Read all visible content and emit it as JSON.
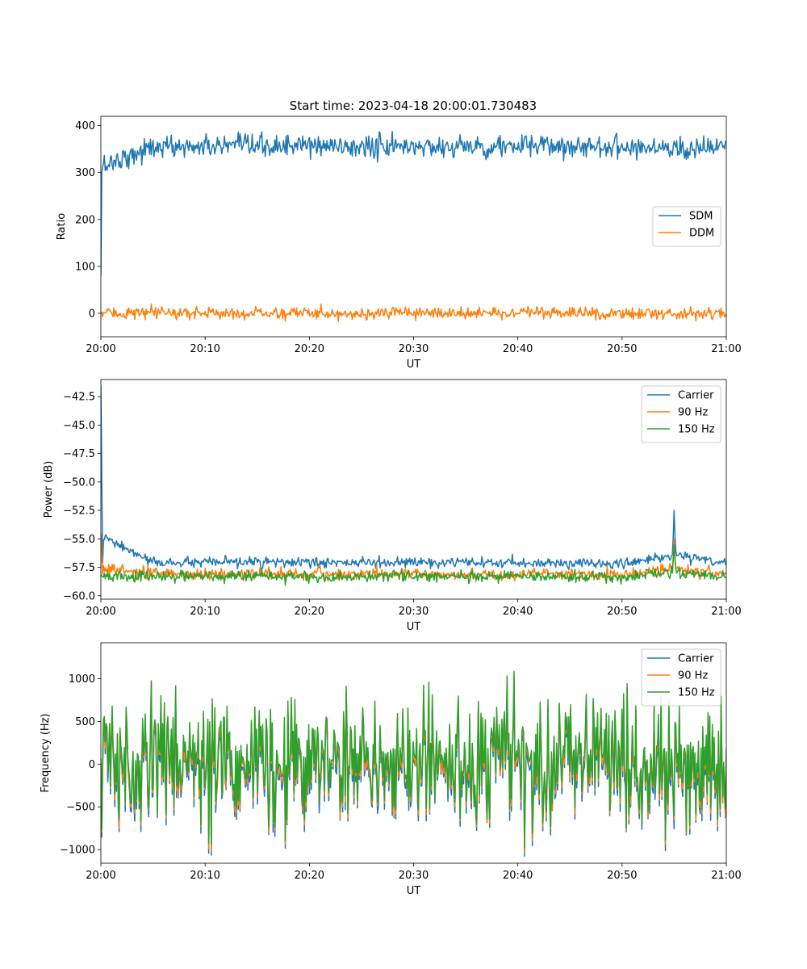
{
  "figure": {
    "title": "Start time: 2023-04-18 20:00:01.730483"
  },
  "colors": {
    "blue": "#1f77b4",
    "orange": "#ff7f0e",
    "green": "#2ca02c"
  },
  "chart_data": [
    {
      "type": "line",
      "title": "Start time: 2023-04-18 20:00:01.730483",
      "xlabel": "UT",
      "ylabel": "Ratio",
      "xlim": [
        "20:00",
        "21:00"
      ],
      "xticks": [
        "20:00",
        "20:10",
        "20:20",
        "20:30",
        "20:40",
        "20:50",
        "21:00"
      ],
      "ylim": [
        -50,
        420
      ],
      "yticks": [
        0,
        100,
        200,
        300,
        400
      ],
      "legend": "center-right",
      "x": [
        "20:00",
        "20:05",
        "20:10",
        "20:15",
        "20:20",
        "20:25",
        "20:30",
        "20:35",
        "20:40",
        "20:45",
        "20:50",
        "20:55",
        "21:00"
      ],
      "series": [
        {
          "name": "SDM",
          "color": "blue",
          "start": 80,
          "mean": 355,
          "noise": 17,
          "values": [
            80,
            350,
            360,
            355,
            370,
            350,
            360,
            355,
            360,
            365,
            360,
            340,
            345
          ]
        },
        {
          "name": "DDM",
          "color": "orange",
          "start": 0,
          "mean": 0,
          "noise": 9,
          "values": [
            0,
            3,
            5,
            -3,
            8,
            -6,
            2,
            3,
            5,
            -2,
            4,
            -8,
            5
          ]
        }
      ]
    },
    {
      "type": "line",
      "title": "",
      "xlabel": "UT",
      "ylabel": "Power (dB)",
      "xlim": [
        "20:00",
        "21:00"
      ],
      "xticks": [
        "20:00",
        "20:10",
        "20:20",
        "20:30",
        "20:40",
        "20:50",
        "21:00"
      ],
      "ylim": [
        -60.3,
        -41.0
      ],
      "yticks": [
        -60.0,
        -57.5,
        -55.0,
        -52.5,
        -50.0,
        -47.5,
        -45.0,
        -42.5
      ],
      "legend": "top-right",
      "x": [
        "20:00",
        "20:05",
        "20:10",
        "20:15",
        "20:20",
        "20:25",
        "20:30",
        "20:35",
        "20:40",
        "20:45",
        "20:50",
        "20:55",
        "21:00"
      ],
      "series": [
        {
          "name": "Carrier",
          "color": "blue",
          "start": -41.5,
          "mean": -57.1,
          "noise": 0.3,
          "values": [
            -41.5,
            -57.0,
            -57.1,
            -56.6,
            -57.2,
            -57.1,
            -57.0,
            -57.3,
            -57.3,
            -57.2,
            -57.8,
            -52.5,
            -57.0
          ]
        },
        {
          "name": "90 Hz",
          "color": "orange",
          "start": -54.5,
          "mean": -58.1,
          "noise": 0.35,
          "values": [
            -54.5,
            -58.1,
            -58.2,
            -57.8,
            -58.3,
            -58.1,
            -58.0,
            -58.3,
            -58.1,
            -58.2,
            -58.5,
            -55.0,
            -58.2
          ]
        },
        {
          "name": "150 Hz",
          "color": "green",
          "start": -58.2,
          "mean": -58.3,
          "noise": 0.35,
          "values": [
            -58.2,
            -58.2,
            -58.4,
            -58.0,
            -58.5,
            -58.3,
            -58.1,
            -58.4,
            -58.3,
            -58.4,
            -58.9,
            -55.5,
            -58.3
          ]
        }
      ]
    },
    {
      "type": "line",
      "title": "",
      "xlabel": "UT",
      "ylabel": "Frequency (Hz)",
      "xlim": [
        "20:00",
        "21:00"
      ],
      "xticks": [
        "20:00",
        "20:10",
        "20:20",
        "20:30",
        "20:40",
        "20:50",
        "21:00"
      ],
      "ylim": [
        -1160,
        1420
      ],
      "yticks": [
        -1000,
        -500,
        0,
        500,
        1000
      ],
      "legend": "top-right",
      "x": [
        "20:00",
        "20:05",
        "20:10",
        "20:15",
        "20:20",
        "20:25",
        "20:30",
        "20:35",
        "20:40",
        "20:45",
        "20:50",
        "20:55",
        "21:00"
      ],
      "series": [
        {
          "name": "Carrier",
          "color": "blue",
          "start": -50,
          "mean": -60,
          "noise": 360,
          "values": [
            -50,
            100,
            -200,
            300,
            -400,
            50,
            200,
            -800,
            900,
            -300,
            100,
            -500,
            -600
          ]
        },
        {
          "name": "90 Hz",
          "color": "orange",
          "start": 0,
          "mean": 0,
          "noise": 360,
          "values": [
            0,
            150,
            -150,
            350,
            -350,
            100,
            250,
            -750,
            950,
            -250,
            150,
            -450,
            -550
          ]
        },
        {
          "name": "150 Hz",
          "color": "green",
          "start": 60,
          "mean": 50,
          "noise": 360,
          "values": [
            60,
            200,
            -100,
            400,
            -300,
            150,
            300,
            -700,
            1000,
            -200,
            200,
            -400,
            -500
          ]
        }
      ]
    }
  ]
}
